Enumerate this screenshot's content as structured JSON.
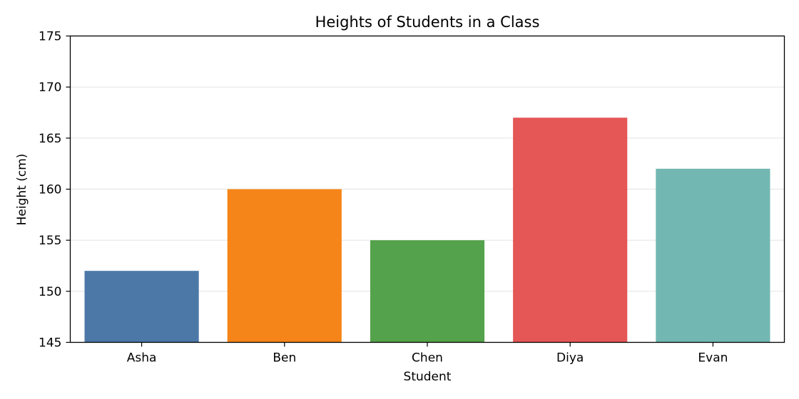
{
  "chart_data": {
    "type": "bar",
    "title": "Heights of Students in a Class",
    "xlabel": "Student",
    "ylabel": "Height (cm)",
    "categories": [
      "Asha",
      "Ben",
      "Chen",
      "Diya",
      "Evan"
    ],
    "values": [
      152,
      160,
      155,
      167,
      162
    ],
    "colors": [
      "#4c78a8",
      "#f58518",
      "#54a24b",
      "#e45756",
      "#72b7b2"
    ],
    "ylim": [
      145,
      175
    ],
    "yticks": [
      145,
      150,
      155,
      160,
      165,
      170,
      175
    ],
    "grid": "y",
    "legend": "none"
  }
}
